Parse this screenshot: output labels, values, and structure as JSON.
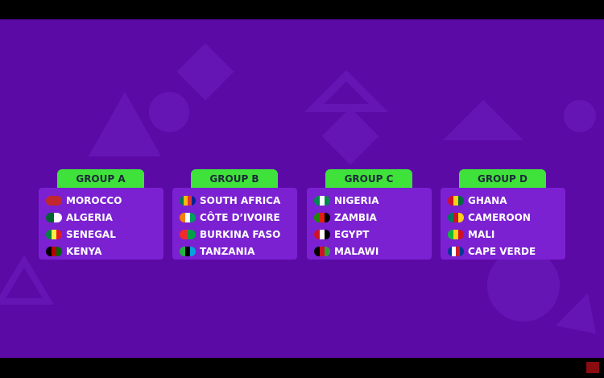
{
  "groups": [
    {
      "title": "GROUP A",
      "teams": [
        {
          "name": "MOROCCO",
          "flag": [
            "#c1272d"
          ]
        },
        {
          "name": "ALGERIA",
          "flag": [
            "#006233",
            "#ffffff"
          ]
        },
        {
          "name": "SENEGAL",
          "flag": [
            "#00853f",
            "#fdef42",
            "#e31b23"
          ]
        },
        {
          "name": "KENYA",
          "flag": [
            "#000000",
            "#bb0000",
            "#006600"
          ]
        }
      ]
    },
    {
      "title": "GROUP B",
      "teams": [
        {
          "name": "SOUTH AFRICA",
          "flag": [
            "#007a4d",
            "#ffb612",
            "#de3831",
            "#002395"
          ]
        },
        {
          "name": "CÔTE D’IVOIRE",
          "flag": [
            "#f77f00",
            "#ffffff",
            "#009e60"
          ]
        },
        {
          "name": "BURKINA FASO",
          "flag": [
            "#ef2b2d",
            "#009e49"
          ]
        },
        {
          "name": "TANZANIA",
          "flag": [
            "#1eb53a",
            "#000000",
            "#00a3dd"
          ]
        }
      ]
    },
    {
      "title": "GROUP C",
      "teams": [
        {
          "name": "NIGERIA",
          "flag": [
            "#008751",
            "#ffffff",
            "#008751"
          ]
        },
        {
          "name": "ZAMBIA",
          "flag": [
            "#198a00",
            "#de2010",
            "#000000"
          ]
        },
        {
          "name": "EGYPT",
          "flag": [
            "#ce1126",
            "#ffffff",
            "#000000"
          ]
        },
        {
          "name": "MALAWI",
          "flag": [
            "#000000",
            "#ce1126",
            "#339e35"
          ]
        }
      ]
    },
    {
      "title": "GROUP D",
      "teams": [
        {
          "name": "GHANA",
          "flag": [
            "#ce1126",
            "#fcd116",
            "#006b3f"
          ]
        },
        {
          "name": "CAMEROON",
          "flag": [
            "#007a5e",
            "#ce1126",
            "#fcd116"
          ]
        },
        {
          "name": "MALI",
          "flag": [
            "#14b53a",
            "#fcd116",
            "#ce1126"
          ]
        },
        {
          "name": "CAPE VERDE",
          "flag": [
            "#003893",
            "#ffffff",
            "#cf2027",
            "#003893"
          ]
        }
      ]
    }
  ]
}
